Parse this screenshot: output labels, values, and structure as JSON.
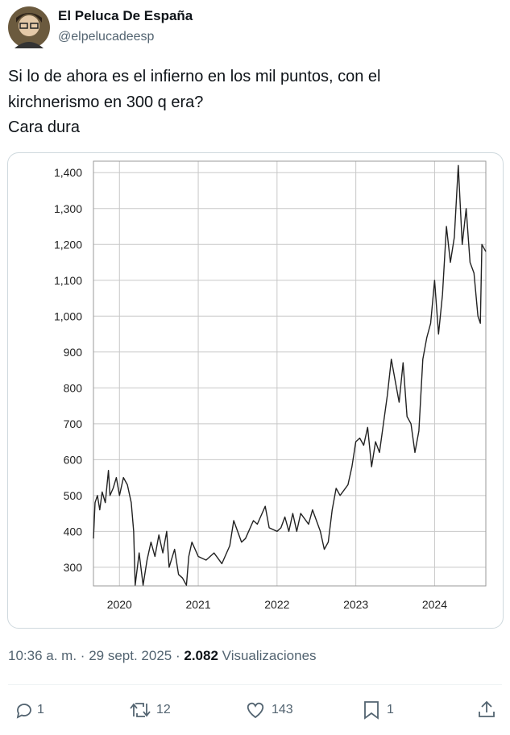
{
  "header": {
    "name": "El Peluca De España",
    "handle": "@elpelucadeesp"
  },
  "body": [
    "Si lo de ahora es el infierno en los mil puntos, con el",
    "kirchnerismo en 300 q era?",
    "Cara dura"
  ],
  "chart_data": {
    "type": "line",
    "color": "#222222",
    "grid": true,
    "x": [
      2019.67,
      2019.69,
      2019.72,
      2019.75,
      2019.78,
      2019.82,
      2019.86,
      2019.88,
      2019.92,
      2019.96,
      2020.0,
      2020.05,
      2020.1,
      2020.15,
      2020.18,
      2020.2,
      2020.25,
      2020.3,
      2020.35,
      2020.4,
      2020.45,
      2020.5,
      2020.55,
      2020.6,
      2020.63,
      2020.7,
      2020.75,
      2020.8,
      2020.85,
      2020.88,
      2020.92,
      2021.0,
      2021.1,
      2021.2,
      2021.3,
      2021.4,
      2021.45,
      2021.55,
      2021.6,
      2021.7,
      2021.75,
      2021.85,
      2021.9,
      2022.0,
      2022.05,
      2022.1,
      2022.15,
      2022.2,
      2022.25,
      2022.3,
      2022.4,
      2022.45,
      2022.55,
      2022.6,
      2022.65,
      2022.7,
      2022.75,
      2022.8,
      2022.9,
      2022.95,
      2023.0,
      2023.05,
      2023.1,
      2023.15,
      2023.2,
      2023.25,
      2023.3,
      2023.4,
      2023.45,
      2023.5,
      2023.55,
      2023.6,
      2023.65,
      2023.7,
      2023.75,
      2023.8,
      2023.85,
      2023.9,
      2023.95,
      2024.0,
      2024.05,
      2024.1,
      2024.15,
      2024.2,
      2024.25,
      2024.3,
      2024.35,
      2024.4,
      2024.45,
      2024.5,
      2024.55,
      2024.58,
      2024.6,
      2024.65
    ],
    "values": [
      380,
      480,
      500,
      460,
      510,
      480,
      570,
      500,
      520,
      550,
      500,
      550,
      530,
      480,
      400,
      250,
      340,
      250,
      320,
      370,
      330,
      390,
      340,
      400,
      300,
      350,
      280,
      270,
      250,
      330,
      370,
      330,
      320,
      340,
      310,
      360,
      430,
      370,
      380,
      430,
      420,
      470,
      410,
      400,
      410,
      440,
      400,
      450,
      400,
      450,
      420,
      460,
      400,
      350,
      370,
      460,
      520,
      500,
      530,
      580,
      650,
      660,
      640,
      690,
      580,
      650,
      620,
      780,
      880,
      820,
      760,
      870,
      720,
      700,
      620,
      680,
      880,
      940,
      980,
      1100,
      950,
      1060,
      1250,
      1150,
      1220,
      1420,
      1200,
      1300,
      1150,
      1120,
      1000,
      980,
      1200,
      1180
    ],
    "xlim": [
      2019.67,
      2024.65
    ],
    "xticks": [
      2020,
      2021,
      2022,
      2023,
      2024
    ],
    "ylim": [
      248,
      1432
    ],
    "yticks": [
      300,
      400,
      500,
      600,
      700,
      800,
      900,
      {
        "value": 1000,
        "label": "1,000"
      },
      {
        "value": 1100,
        "label": "1,100"
      },
      {
        "value": 1200,
        "label": "1,200"
      },
      {
        "value": 1300,
        "label": "1,300"
      },
      {
        "value": 1400,
        "label": "1,400"
      }
    ]
  },
  "meta": {
    "time": "10:36 a. m.",
    "separator": "·",
    "date": "29 sept. 2025",
    "views": "2.082",
    "views_label": "Visualizaciones"
  },
  "actions": {
    "replies": "1",
    "reposts": "12",
    "likes": "143",
    "bookmarks": "1"
  }
}
